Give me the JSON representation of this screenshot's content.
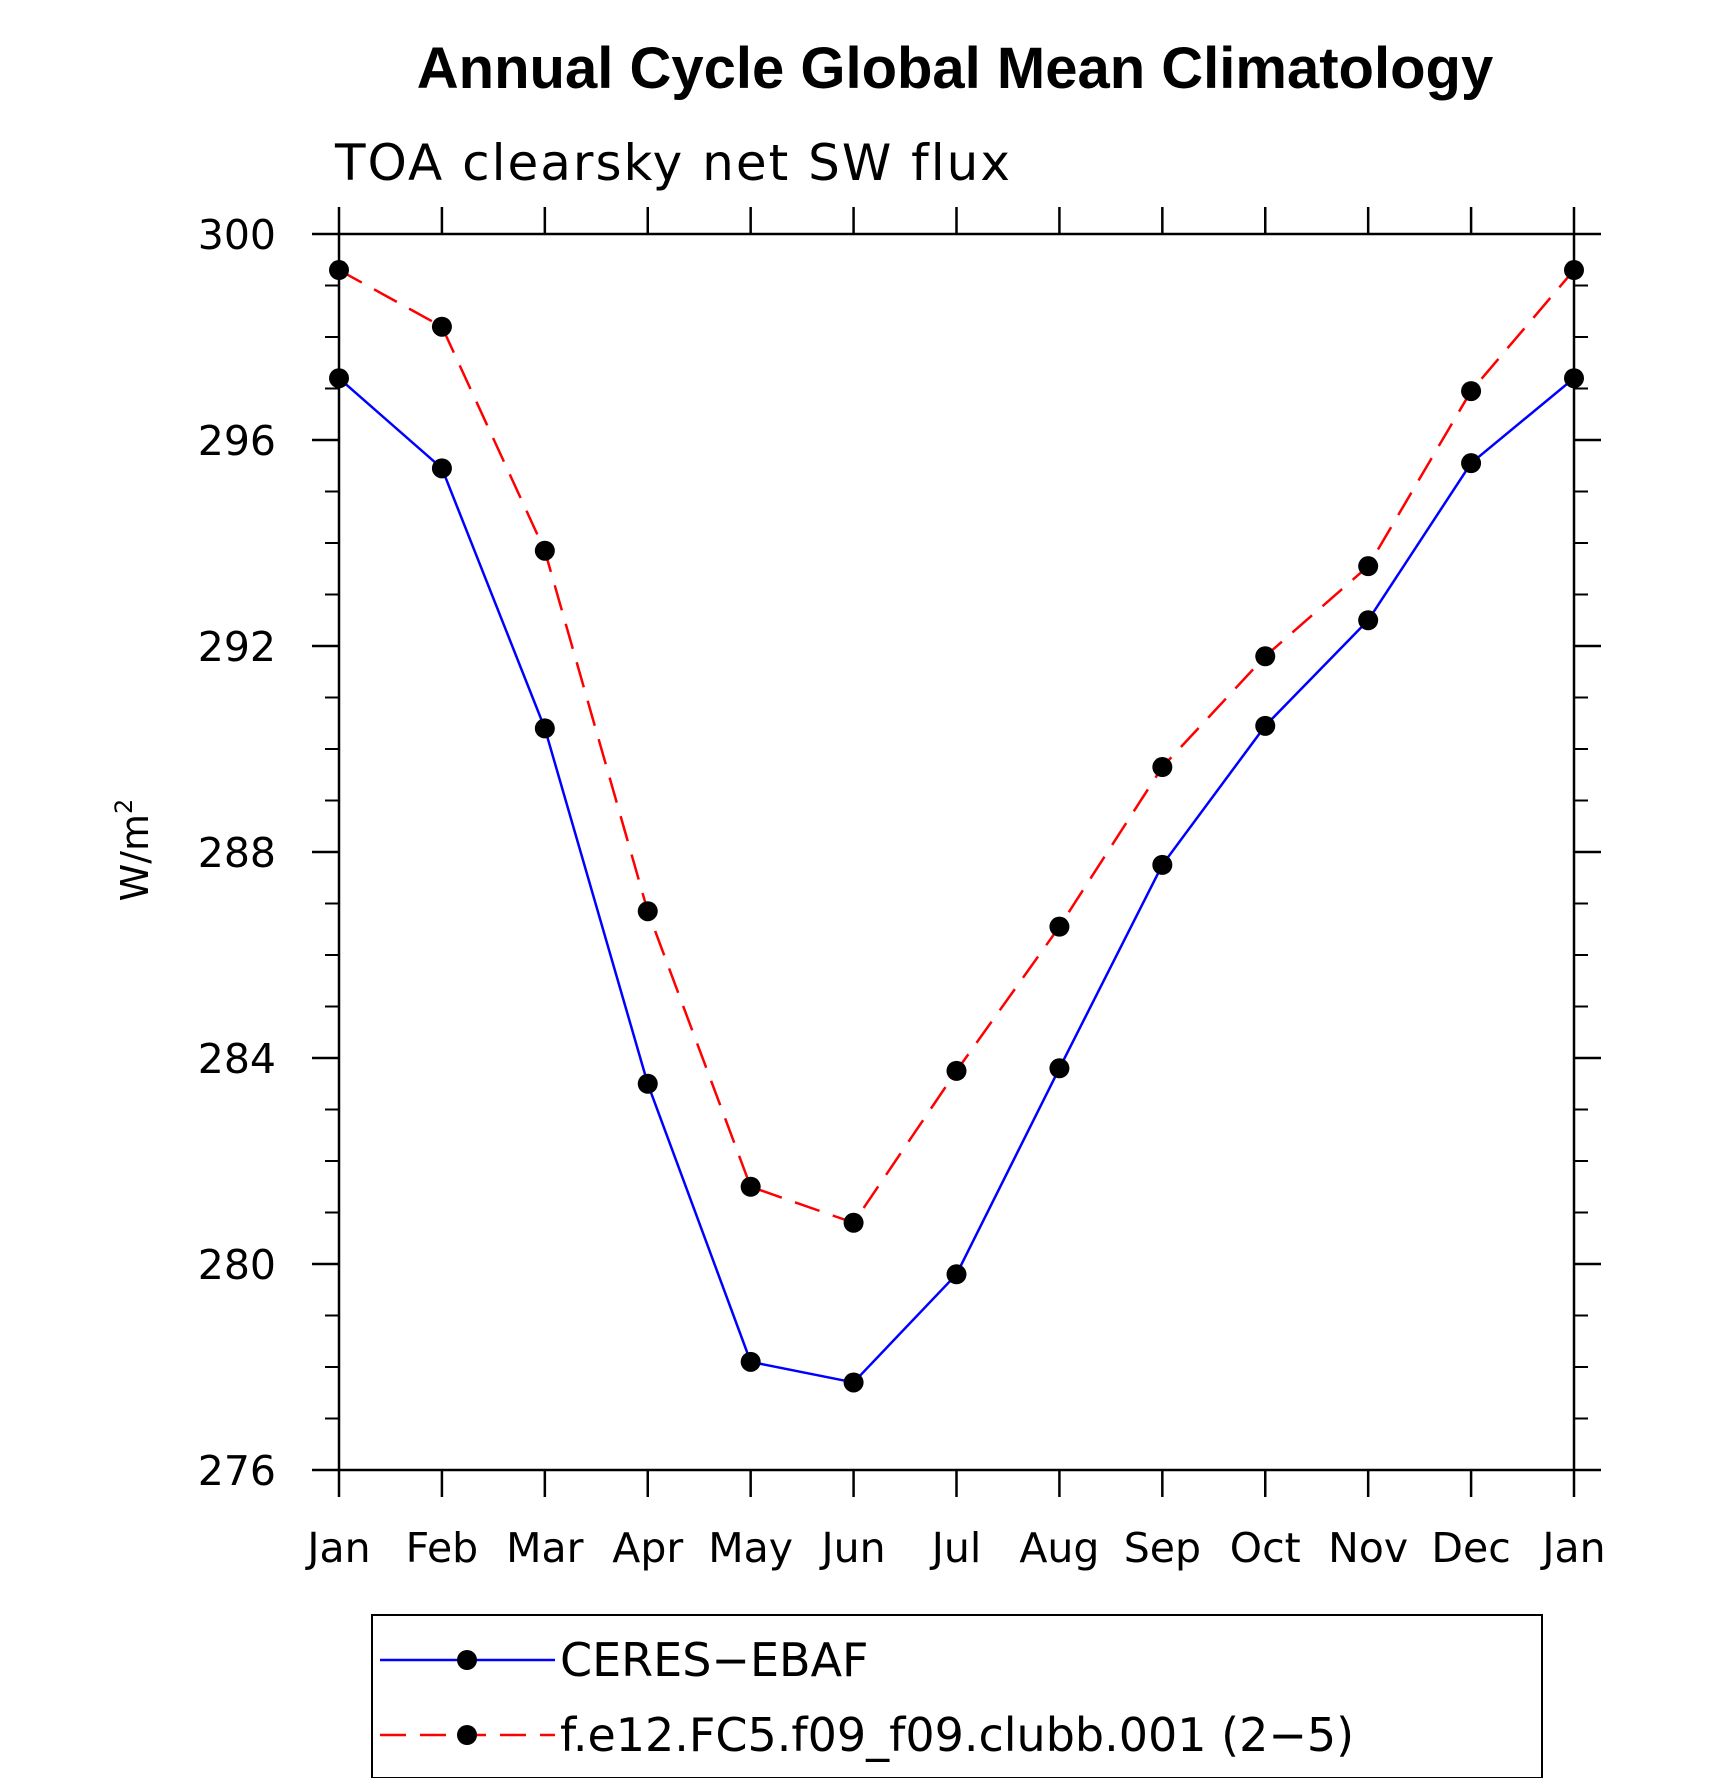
{
  "chart_data": {
    "type": "line",
    "title": "Annual Cycle Global Mean Climatology",
    "subtitle": "TOA clearsky net SW flux",
    "ylabel_base": "W/m",
    "ylabel_sup": "2",
    "xlabel": "",
    "categories": [
      "Jan",
      "Feb",
      "Mar",
      "Apr",
      "May",
      "Jun",
      "Jul",
      "Aug",
      "Sep",
      "Oct",
      "Nov",
      "Dec",
      "Jan"
    ],
    "ylim": [
      276,
      300
    ],
    "yticks": [
      276,
      280,
      284,
      288,
      292,
      296,
      300
    ],
    "yminor_step": 1,
    "grid": false,
    "legend_position": "bottom",
    "series": [
      {
        "name": "CERES−EBAF",
        "color": "#0000ff",
        "dash": "solid",
        "values": [
          297.2,
          295.45,
          290.4,
          283.5,
          278.1,
          277.7,
          279.8,
          283.8,
          287.75,
          290.45,
          292.5,
          295.55,
          297.2
        ]
      },
      {
        "name": "f.e12.FC5.f09_f09.clubb.001 (2−5)",
        "color": "#ff0000",
        "dash": "dashed",
        "values": [
          299.3,
          298.2,
          293.85,
          286.85,
          281.5,
          280.8,
          283.75,
          286.55,
          289.65,
          291.8,
          293.55,
          296.95,
          299.3
        ]
      }
    ]
  }
}
